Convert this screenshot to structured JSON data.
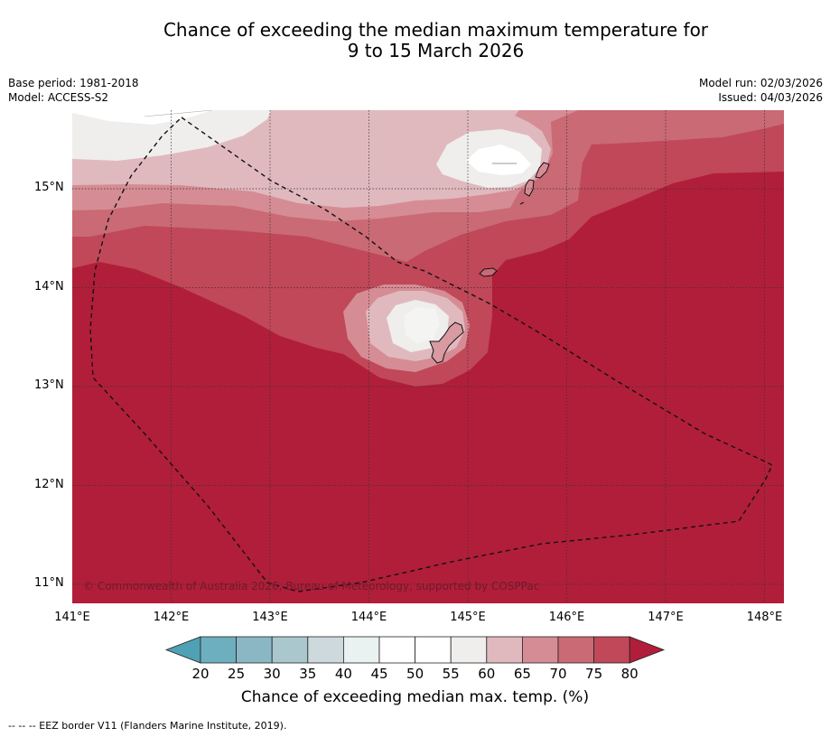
{
  "title": {
    "line1": "Chance of exceeding the median maximum temperature for",
    "line2": "9 to 15 March 2026"
  },
  "meta": {
    "base_period": "Base period: 1981-2018",
    "model": "Model: ACCESS-S2",
    "model_run": "Model run: 02/03/2026",
    "issued": "Issued: 04/03/2026"
  },
  "axes": {
    "latitudes": [
      "15°N",
      "14°N",
      "13°N",
      "12°N",
      "11°N"
    ],
    "longitudes": [
      "141°E",
      "142°E",
      "143°E",
      "144°E",
      "145°E",
      "146°E",
      "147°E",
      "148°E"
    ]
  },
  "copyright": "© Commonwealth of Australia 2026, Bureau of Meteorology, supported by COSPPac",
  "colorbar": {
    "ticks": [
      "20",
      "25",
      "30",
      "35",
      "40",
      "45",
      "50",
      "55",
      "60",
      "65",
      "70",
      "75",
      "80"
    ],
    "colors": [
      "#4fa1b3",
      "#6dafbf",
      "#8bb7c4",
      "#a9c7cc",
      "#cdd9dc",
      "#eaf1f1",
      "#ffffff",
      "#ffffff",
      "#efeeec",
      "#e0b9be",
      "#d68c94",
      "#c96a75",
      "#c04858",
      "#b11e3a"
    ],
    "title": "Chance of exceeding median max. temp. (%)"
  },
  "footer": "--  --  -- EEZ border V11 (Flanders Marine Institute, 2019)."
}
